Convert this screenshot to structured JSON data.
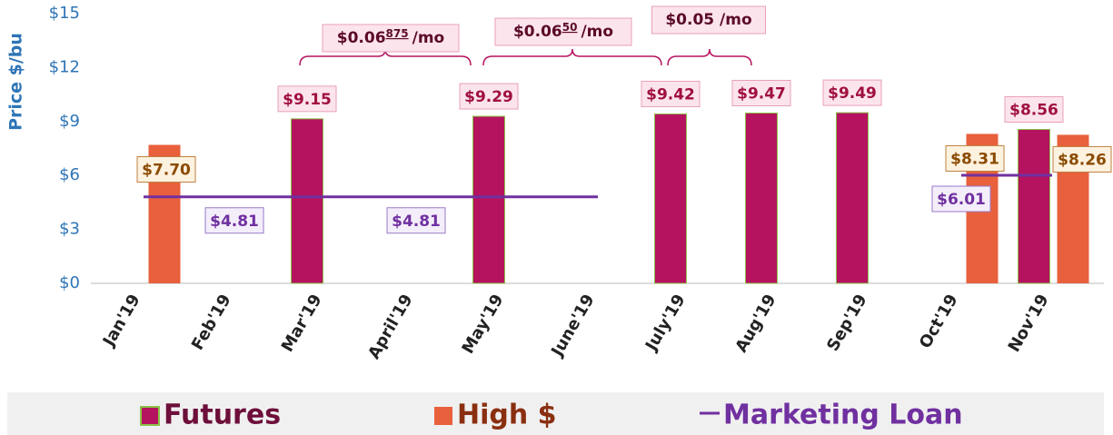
{
  "chart_data": {
    "type": "bar",
    "y_label": "Price $/bu",
    "categories": [
      "Jan'19",
      "Feb'19",
      "Mar'19",
      "April'19",
      "May'19",
      "June'19",
      "July'19",
      "Aug'19",
      "Sep'19",
      "Oct'19",
      "Nov'19"
    ],
    "series": [
      {
        "name": "Futures",
        "color": "#b5135f",
        "type": "bar",
        "values": [
          null,
          null,
          9.15,
          null,
          9.29,
          null,
          9.42,
          9.47,
          9.49,
          null,
          8.56
        ],
        "value_labels": [
          null,
          null,
          "$9.15",
          null,
          "$9.29",
          null,
          "$9.42",
          "$9.47",
          "$9.49",
          null,
          "$8.56"
        ]
      },
      {
        "name": "High $",
        "color": "#e8603c",
        "type": "bar",
        "values": [
          7.7,
          null,
          null,
          null,
          null,
          null,
          null,
          null,
          null,
          8.31,
          8.26
        ],
        "value_labels": [
          "$7.70",
          null,
          null,
          null,
          null,
          null,
          null,
          null,
          null,
          "$8.31",
          "$8.26"
        ]
      },
      {
        "name": "Marketing Loan",
        "color": "#7030a0",
        "type": "line",
        "values": [
          4.81,
          4.81,
          4.81,
          4.81,
          4.81,
          4.81,
          null,
          null,
          null,
          6.01,
          6.01
        ],
        "value_labels": [
          null,
          "$4.81",
          null,
          "$4.81",
          null,
          null,
          null,
          null,
          null,
          "$6.01",
          null
        ]
      }
    ],
    "annotations": [
      {
        "parts": [
          "$0.06",
          "875",
          "/mo"
        ]
      },
      {
        "parts": [
          "$0.06",
          "50",
          "/mo"
        ]
      },
      {
        "parts": [
          "$0.05 /mo"
        ]
      }
    ],
    "ylim": [
      0,
      15
    ],
    "yticks": [
      {
        "value": 0,
        "label": "$0"
      },
      {
        "value": 3,
        "label": "$3"
      },
      {
        "value": 6,
        "label": "$6"
      },
      {
        "value": 9,
        "label": "$9"
      },
      {
        "value": 12,
        "label": "$12"
      },
      {
        "value": 15,
        "label": "$15"
      }
    ]
  }
}
